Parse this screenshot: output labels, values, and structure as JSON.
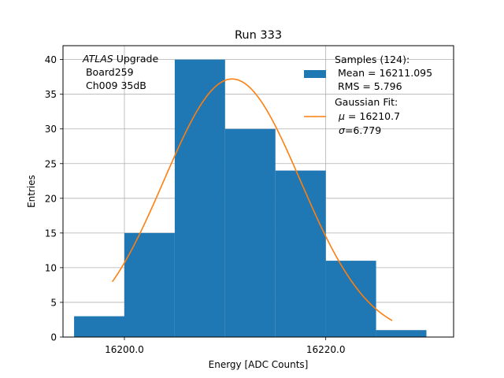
{
  "chart_data": {
    "type": "bar",
    "title": "Run 333",
    "xlabel": "Energy [ADC Counts]",
    "ylabel": "Entries",
    "xlim": [
      16193.9,
      16232.7
    ],
    "ylim": [
      0,
      42
    ],
    "xticks": [
      16200,
      16220
    ],
    "xtick_labels": [
      "16200.0",
      "16220.0"
    ],
    "yticks": [
      0,
      5,
      10,
      15,
      20,
      25,
      30,
      35,
      40
    ],
    "grid": true,
    "bins": [
      {
        "start": 16195.0,
        "end": 16200.0,
        "count": 3
      },
      {
        "start": 16200.0,
        "end": 16205.0,
        "count": 15
      },
      {
        "start": 16205.0,
        "end": 16210.0,
        "count": 40
      },
      {
        "start": 16210.0,
        "end": 16215.0,
        "count": 30
      },
      {
        "start": 16215.0,
        "end": 16220.0,
        "count": 24
      },
      {
        "start": 16220.0,
        "end": 16225.0,
        "count": 11
      },
      {
        "start": 16225.0,
        "end": 16230.0,
        "count": 1
      }
    ],
    "fit": {
      "type": "gaussian",
      "mu": 16210.7,
      "sigma": 6.779,
      "amplitude": 37.2,
      "x_range": [
        16198.8,
        16226.6
      ]
    },
    "colors": {
      "bars": "#1f77b4",
      "fit": "#ff7f0e",
      "grid": "#b0b0b0"
    },
    "annotation": {
      "line1_italic": "ATLAS",
      "line1_rest": " Upgrade",
      "line2": " Board259",
      "line3": " Ch009 35dB"
    },
    "legend": {
      "placement": "top-right",
      "samples_line1": "Samples (124):",
      "samples_line2": " Mean = 16211.095",
      "samples_line3": " RMS = 5.796",
      "fit_line1": "Gaussian Fit:",
      "fit_line2_sym": "μ",
      "fit_line2_rest": " = 16210.7",
      "fit_line3_sym": "σ",
      "fit_line3_rest": "=6.779"
    }
  }
}
